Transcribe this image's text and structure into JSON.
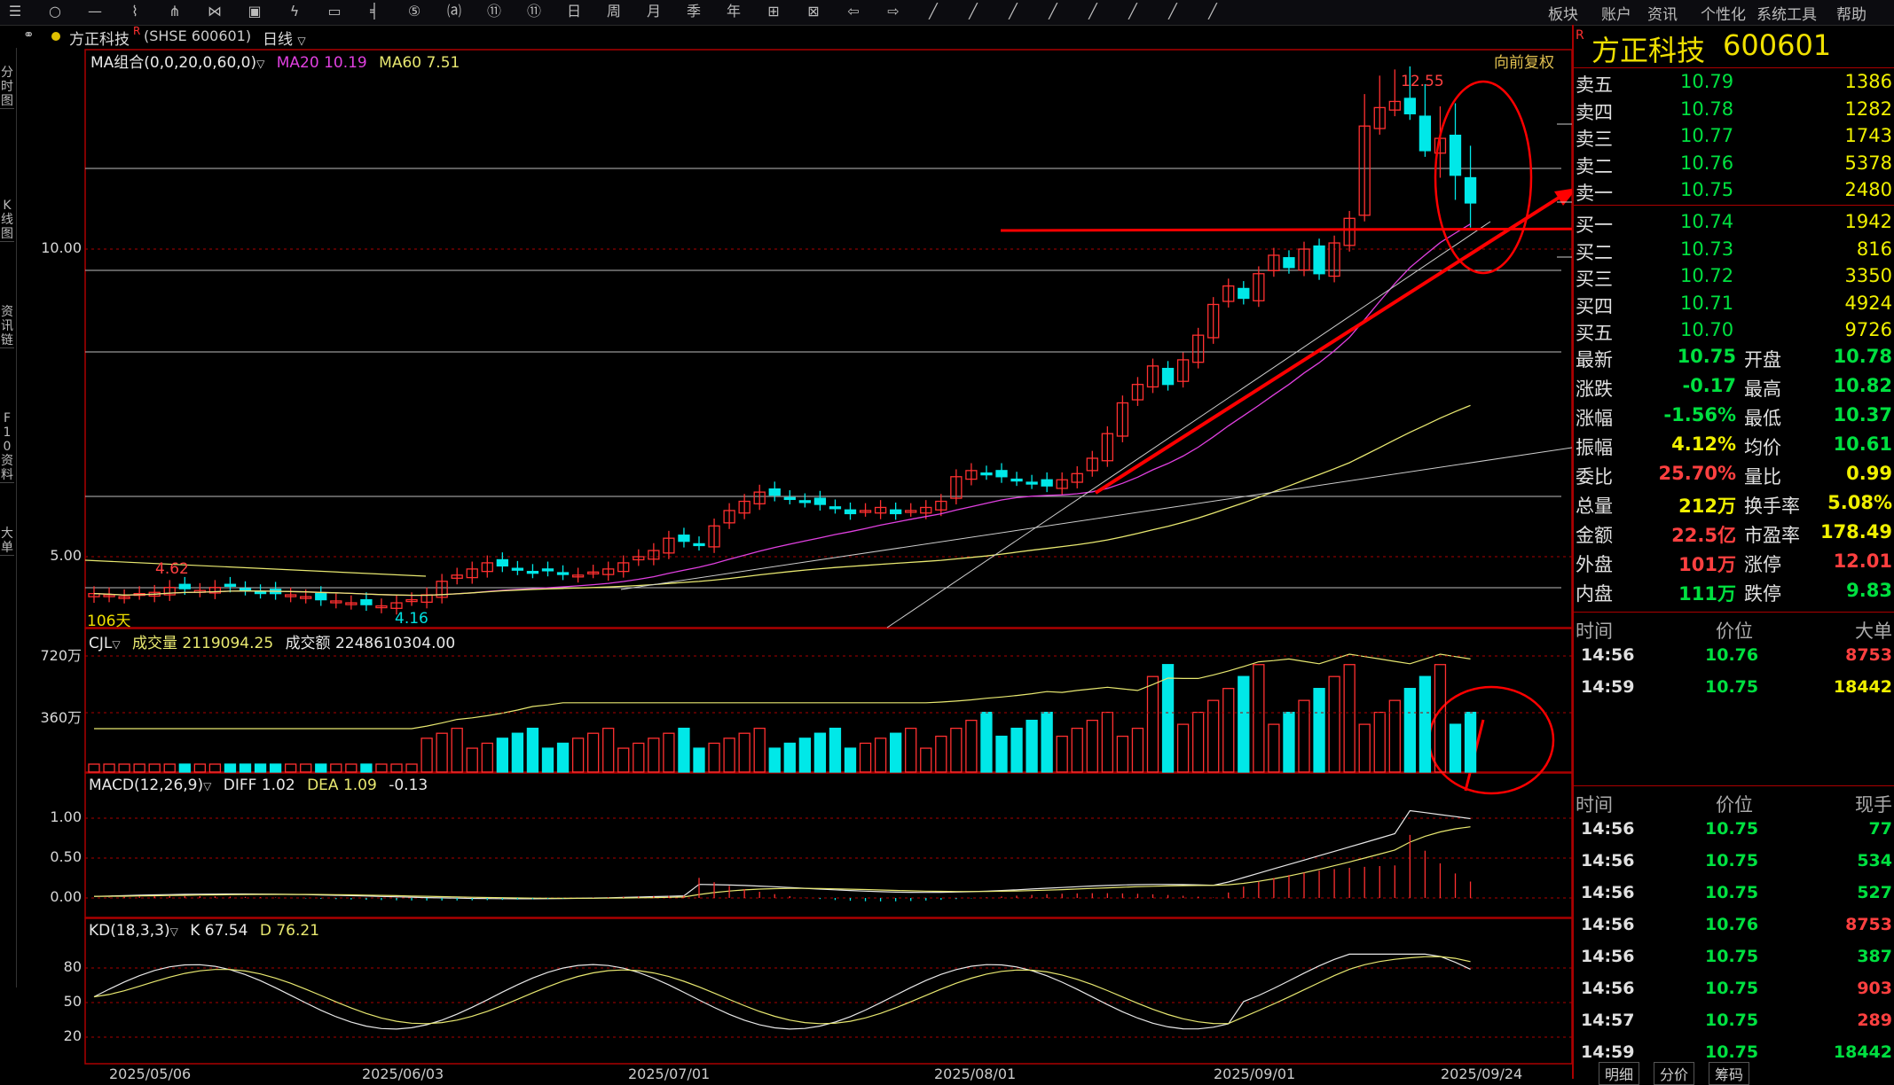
{
  "toolbar": {
    "menus": [
      "板块",
      "账户",
      "资讯",
      "个性化",
      "系统工具",
      "帮助"
    ],
    "icons": [
      "menu-icon",
      "circle-icon",
      "minus-icon",
      "line-chart-icon",
      "split-icon",
      "compare-icon",
      "screen-icon",
      "lightning-icon",
      "window-icon",
      "tool-1-icon",
      "tool-2-icon",
      "tool-3-icon",
      "tool-4-icon",
      "tool-5-icon",
      "tool-6-icon",
      "tool-7-icon",
      "tool-8-icon",
      "tool-9-icon",
      "tool-10-icon",
      "tool-11-icon",
      "tool-12-icon",
      "tool-13-icon",
      "tool-14-icon",
      "draw-line-icon",
      "draw-ray-icon",
      "draw-seg-icon",
      "draw-channel-icon",
      "draw-arrow-icon",
      "draw-text-icon",
      "eraser-icon",
      "more-icon"
    ]
  },
  "subbar": {
    "stock_title": "方正科技",
    "badge": "R",
    "code_text": "(SHSE 600601)",
    "period": "日线"
  },
  "left_rail": [
    {
      "label": "分时图"
    },
    {
      "label": "K线图"
    },
    {
      "label": "资讯链"
    },
    {
      "label": "F10资料"
    },
    {
      "label": "大单"
    }
  ],
  "main": {
    "ma_label": "MA组合(0,0,20,0,60,0)",
    "ma20": "MA20 10.19",
    "ma60": "MA60 7.51",
    "adjust": "向前复权",
    "high_label": "12.55",
    "low_label": "4.16",
    "mark_label": "4.62",
    "days_label": "106天",
    "y_ticks": [
      "10.00",
      "5.00"
    ],
    "vol_label": "CJL",
    "vol_text": "成交量 2119094.25",
    "amt_text": "成交额 2248610304.00",
    "vol_ticks": [
      "720万",
      "360万"
    ],
    "macd_label": "MACD(12,26,9)",
    "diff": "DIFF 1.02",
    "dea": "DEA 1.09",
    "macd_val": "-0.13",
    "macd_ticks": [
      "1.00",
      "0.50",
      "0.00"
    ],
    "kd_label": "KD(18,3,3)",
    "kd_k": "K 67.54",
    "kd_d": "D 76.21",
    "kd_ticks": [
      "80",
      "50",
      "20"
    ],
    "dates": [
      "2025/05/06",
      "2025/06/03",
      "2025/07/01",
      "2025/08/01",
      "2025/09/01",
      "2025/09/24"
    ]
  },
  "quote": {
    "badge": "R",
    "name": "方正科技",
    "code": "600601",
    "asks": [
      {
        "label": "卖五",
        "price": "10.79",
        "vol": "1386"
      },
      {
        "label": "卖四",
        "price": "10.78",
        "vol": "1282"
      },
      {
        "label": "卖三",
        "price": "10.77",
        "vol": "1743"
      },
      {
        "label": "卖二",
        "price": "10.76",
        "vol": "5378"
      },
      {
        "label": "卖一",
        "price": "10.75",
        "vol": "2480"
      }
    ],
    "bids": [
      {
        "label": "买一",
        "price": "10.74",
        "vol": "1942"
      },
      {
        "label": "买二",
        "price": "10.73",
        "vol": "816"
      },
      {
        "label": "买三",
        "price": "10.72",
        "vol": "3350"
      },
      {
        "label": "买四",
        "price": "10.71",
        "vol": "4924"
      },
      {
        "label": "买五",
        "price": "10.70",
        "vol": "9726"
      }
    ],
    "stats": [
      {
        "l1": "最新",
        "v1": "10.75",
        "c1": "grn",
        "l2": "开盘",
        "v2": "10.78",
        "c2": "grn"
      },
      {
        "l1": "涨跌",
        "v1": "-0.17",
        "c1": "grn",
        "l2": "最高",
        "v2": "10.82",
        "c2": "grn"
      },
      {
        "l1": "涨幅",
        "v1": "-1.56%",
        "c1": "grn",
        "l2": "最低",
        "v2": "10.37",
        "c2": "grn"
      },
      {
        "l1": "振幅",
        "v1": "4.12%",
        "c1": "yel",
        "l2": "均价",
        "v2": "10.61",
        "c2": "grn"
      },
      {
        "l1": "委比",
        "v1": "25.70%",
        "c1": "red",
        "l2": "量比",
        "v2": "0.99",
        "c2": "yel"
      },
      {
        "l1": "总量",
        "v1": "212万",
        "c1": "yel",
        "l2": "换手率",
        "v2": "5.08%",
        "c2": "yel"
      },
      {
        "l1": "金额",
        "v1": "22.5亿",
        "c1": "red",
        "l2": "市盈率",
        "v2": "178.49",
        "c2": "yel"
      },
      {
        "l1": "外盘",
        "v1": "101万",
        "c1": "red",
        "l2": "涨停",
        "v2": "12.01",
        "c2": "red"
      },
      {
        "l1": "内盘",
        "v1": "111万",
        "c1": "grn",
        "l2": "跌停",
        "v2": "9.83",
        "c2": "grn"
      }
    ],
    "big_header": [
      "时间",
      "价位",
      "大单"
    ],
    "big_trades": [
      {
        "time": "14:56",
        "price": "10.76",
        "vol": "8753",
        "vc": "red"
      },
      {
        "time": "14:59",
        "price": "10.75",
        "vol": "18442",
        "vc": "yel"
      }
    ],
    "tick_header": [
      "时间",
      "价位",
      "现手"
    ],
    "ticks": [
      {
        "time": "14:56",
        "price": "10.75",
        "vol": "77",
        "vc": "grn"
      },
      {
        "time": "14:56",
        "price": "10.75",
        "vol": "534",
        "vc": "grn"
      },
      {
        "time": "14:56",
        "price": "10.75",
        "vol": "527",
        "vc": "grn"
      },
      {
        "time": "14:56",
        "price": "10.76",
        "vol": "8753",
        "vc": "red"
      },
      {
        "time": "14:56",
        "price": "10.75",
        "vol": "387",
        "vc": "grn"
      },
      {
        "time": "14:56",
        "price": "10.75",
        "vol": "903",
        "vc": "red"
      },
      {
        "time": "14:57",
        "price": "10.75",
        "vol": "289",
        "vc": "red"
      },
      {
        "time": "14:59",
        "price": "10.75",
        "vol": "18442",
        "vc": "grn"
      }
    ],
    "bottom_tabs": [
      "明细",
      "分价",
      "筹码"
    ]
  },
  "colors": {
    "up": "#ff3030",
    "down": "#00e8e8",
    "ma20": "#e040e0",
    "ma60": "#e8e870",
    "accent": "#ff0000"
  },
  "chart_data": [
    {
      "type": "candlestick",
      "title": "方正科技 日线",
      "ma": {
        "MA20": 10.19,
        "MA60": 7.51
      },
      "y_ticks": [
        5.0,
        10.0
      ],
      "high": 12.55,
      "low": 4.16,
      "last": 10.75,
      "closes": [
        4.4,
        4.38,
        4.35,
        4.4,
        4.42,
        4.5,
        4.48,
        4.45,
        4.5,
        4.52,
        4.47,
        4.42,
        4.4,
        4.38,
        4.35,
        4.3,
        4.28,
        4.25,
        4.22,
        4.2,
        4.25,
        4.3,
        4.38,
        4.6,
        4.7,
        4.8,
        4.9,
        4.85,
        4.8,
        4.75,
        4.78,
        4.72,
        4.7,
        4.75,
        4.8,
        4.9,
        5.0,
        5.1,
        5.3,
        5.25,
        5.2,
        5.5,
        5.75,
        5.9,
        6.05,
        6.0,
        5.95,
        5.9,
        5.85,
        5.8,
        5.7,
        5.75,
        5.8,
        5.7,
        5.75,
        5.8,
        5.9,
        6.3,
        6.4,
        6.35,
        6.3,
        6.25,
        6.2,
        6.15,
        6.25,
        6.35,
        6.6,
        7.0,
        7.5,
        7.8,
        8.1,
        7.8,
        8.2,
        8.6,
        9.1,
        9.4,
        9.2,
        9.6,
        9.9,
        9.7,
        10.0,
        9.6,
        10.1,
        10.5,
        12.0,
        12.3,
        12.4,
        12.2,
        11.6,
        11.8,
        11.2,
        10.75
      ]
    },
    {
      "type": "bar",
      "title": "CJL",
      "y_ticks_text": [
        "360万",
        "720万"
      ],
      "last_volume": 2119094.25,
      "last_amount": 2248610304.0
    },
    {
      "type": "line",
      "title": "MACD(12,26,9)",
      "series": [
        {
          "name": "DIFF",
          "last": 1.02
        },
        {
          "name": "DEA",
          "last": 1.09
        },
        {
          "name": "MACD",
          "last": -0.13
        }
      ],
      "y_ticks": [
        0.0,
        0.5,
        1.0
      ]
    },
    {
      "type": "line",
      "title": "KD(18,3,3)",
      "series": [
        {
          "name": "K",
          "last": 67.54
        },
        {
          "name": "D",
          "last": 76.21
        }
      ],
      "y_ticks": [
        20,
        50,
        80
      ]
    }
  ]
}
